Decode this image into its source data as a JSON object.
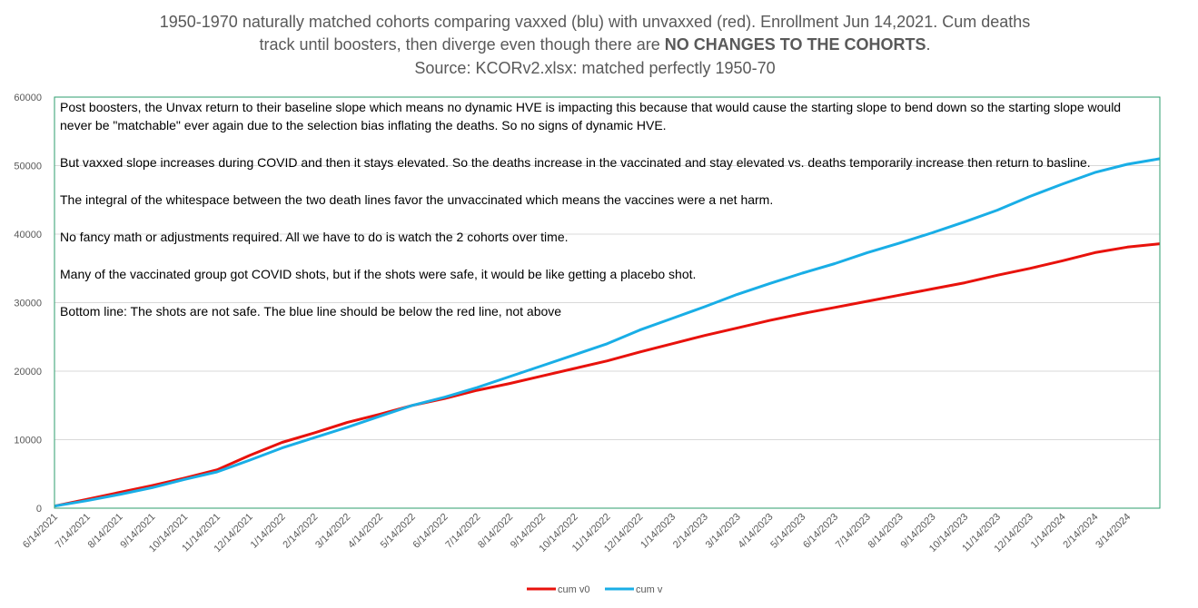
{
  "chart_data": {
    "type": "line",
    "title": {
      "line1": "1950-1970 naturally matched cohorts comparing vaxxed (blu) with unvaxxed (red). Enrollment Jun 14,2021. Cum deaths",
      "line2": "track until boosters, then diverge even though there are ",
      "line2_bold": "NO CHANGES TO THE COHORTS",
      "line2_end": ".",
      "line3": "Source: KCORv2.xlsx: matched perfectly 1950-70"
    },
    "annotations": [
      "Post boosters, the Unvax return to their baseline slope which means no dynamic HVE  is impacting this because that would cause the starting slope to bend down so the starting slope would never be \"matchable\" ever again due to the selection bias inflating the deaths. So no signs of dynamic HVE.",
      "But vaxxed slope increases during COVID and then it stays elevated. So the deaths increase in the vaccinated and stay elevated vs. deaths temporarily increase then return to basline.",
      "The integral of the whitespace between the two death lines favor the unvaccinated which means the vaccines were a net harm.",
      "No fancy math or adjustments required. All we have to do is watch the 2 cohorts over time.",
      "Many of the vaccinated group got COVID shots, but if the shots were safe, it would be like getting a placebo shot.",
      "Bottom line: The shots are not safe. The blue line should be below the red line, not above"
    ],
    "categories": [
      "6/14/2021",
      "7/14/2021",
      "8/14/2021",
      "9/14/2021",
      "10/14/2021",
      "11/14/2021",
      "12/14/2021",
      "1/14/2022",
      "2/14/2022",
      "3/14/2022",
      "4/14/2022",
      "5/14/2022",
      "6/14/2022",
      "7/14/2022",
      "8/14/2022",
      "9/14/2022",
      "10/14/2022",
      "11/14/2022",
      "12/14/2022",
      "1/14/2023",
      "2/14/2023",
      "3/14/2023",
      "4/14/2023",
      "5/14/2023",
      "6/14/2023",
      "7/14/2023",
      "8/14/2023",
      "9/14/2023",
      "10/14/2023",
      "11/14/2023",
      "12/14/2023",
      "1/14/2024",
      "2/14/2024",
      "3/14/2024",
      null
    ],
    "series": [
      {
        "name": "cum v0",
        "color": "#e8120c",
        "values": [
          300,
          1300,
          2300,
          3300,
          4400,
          5600,
          7700,
          9600,
          11000,
          12500,
          13700,
          15000,
          16000,
          17200,
          18200,
          19300,
          20400,
          21500,
          22800,
          24000,
          25200,
          26300,
          27400,
          28400,
          29300,
          30200,
          31100,
          32000,
          32900,
          34000,
          35000,
          36100,
          37300,
          38100,
          38600
        ]
      },
      {
        "name": "cum v",
        "color": "#19aee6",
        "values": [
          300,
          1100,
          2000,
          3000,
          4200,
          5300,
          7000,
          8800,
          10300,
          11800,
          13400,
          15000,
          16200,
          17600,
          19200,
          20800,
          22400,
          24000,
          26000,
          27700,
          29400,
          31200,
          32800,
          34300,
          35700,
          37300,
          38700,
          40200,
          41800,
          43500,
          45500,
          47300,
          49000,
          50200,
          51000
        ]
      }
    ],
    "ylim": [
      0,
      60000
    ],
    "yticks": [
      0,
      10000,
      20000,
      30000,
      40000,
      50000,
      60000
    ],
    "grid": true,
    "legend": "bottom"
  }
}
